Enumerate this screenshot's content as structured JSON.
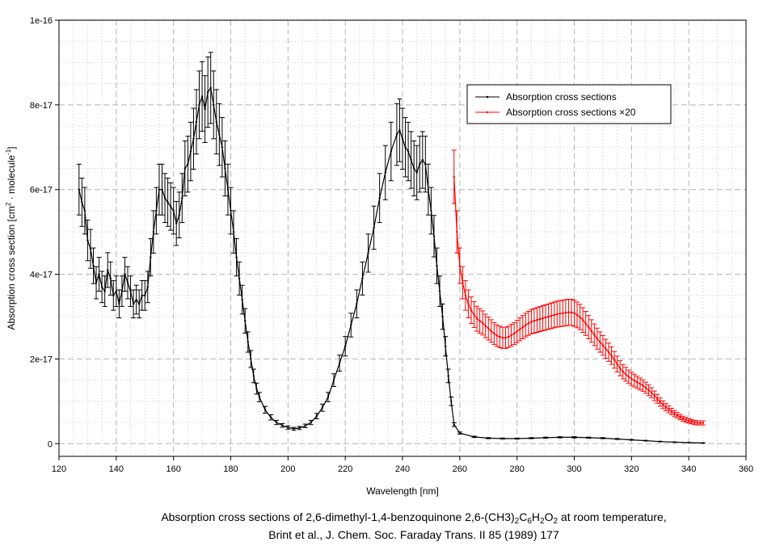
{
  "chart_data": {
    "type": "line",
    "title": "",
    "xlabel": "Wavelength [nm]",
    "ylabel": {
      "pre": "Absorption cross section [cm",
      "sup1": "2",
      "mid": " · molecule",
      "sup2": "-1",
      "post": "]"
    },
    "xlim": [
      120,
      360
    ],
    "ylim": [
      -3e-18,
      1e-16
    ],
    "x_ticks": [
      120,
      140,
      160,
      180,
      200,
      220,
      240,
      260,
      280,
      300,
      320,
      340,
      360
    ],
    "x_tick_labels": [
      "120",
      "140",
      "160",
      "180",
      "200",
      "220",
      "240",
      "260",
      "280",
      "300",
      "320",
      "340",
      "360"
    ],
    "y_ticks": [
      0,
      2e-17,
      4e-17,
      6e-17,
      8e-17,
      1e-16
    ],
    "y_tick_labels": [
      "0",
      "2e-17",
      "4e-17",
      "6e-17",
      "8e-17",
      "1e-16"
    ],
    "grid": true,
    "legend_position": "top-right",
    "series": [
      {
        "name": "Absorption cross sections",
        "color": "#000000",
        "error_fraction": 0.1,
        "x": [
          127,
          128,
          129,
          130,
          131,
          132,
          133,
          134,
          135,
          136,
          137,
          138,
          139,
          140,
          141,
          142,
          143,
          144,
          145,
          146,
          147,
          148,
          149,
          150,
          151,
          152,
          153,
          154,
          155,
          156,
          157,
          158,
          159,
          160,
          161,
          162,
          163,
          164,
          165,
          166,
          167,
          168,
          169,
          170,
          171,
          172,
          173,
          174,
          175,
          176,
          177,
          178,
          179,
          180,
          181,
          182,
          183,
          184,
          185,
          186,
          187,
          188,
          189,
          190,
          192,
          194,
          196,
          198,
          200,
          202,
          204,
          206,
          208,
          210,
          212,
          214,
          216,
          218,
          220,
          222,
          224,
          226,
          228,
          230,
          232,
          234,
          236,
          238,
          239,
          240,
          241,
          242,
          243,
          244,
          245,
          246,
          247,
          248,
          249,
          250,
          251,
          252,
          253,
          254,
          255,
          256,
          257,
          258,
          260,
          265,
          270,
          275,
          280,
          285,
          290,
          295,
          300,
          305,
          310,
          315,
          320,
          325,
          330,
          335,
          340,
          345
        ],
        "y": [
          6e-17,
          5.7e-17,
          5.5e-17,
          4.8e-17,
          4.6e-17,
          4.2e-17,
          3.8e-17,
          4e-17,
          3.7e-17,
          3.6e-17,
          4.1e-17,
          3.9e-17,
          3.5e-17,
          3.6e-17,
          3.3e-17,
          3.6e-17,
          4e-17,
          3.8e-17,
          3.6e-17,
          3.3e-17,
          3.4e-17,
          3.3e-17,
          3.5e-17,
          3.5e-17,
          3.7e-17,
          4.4e-17,
          5e-17,
          5.5e-17,
          6e-17,
          6e-17,
          5.8e-17,
          5.7e-17,
          5.6e-17,
          5.5e-17,
          5.2e-17,
          5.4e-17,
          5.8e-17,
          6.5e-17,
          6.6e-17,
          6.9e-17,
          7.2e-17,
          7.6e-17,
          8e-17,
          8.2e-17,
          7.9e-17,
          8.3e-17,
          8.4e-17,
          8e-17,
          7.6e-17,
          7.3e-17,
          7e-17,
          6.5e-17,
          6e-17,
          5.5e-17,
          5e-17,
          4.4e-17,
          3.9e-17,
          3.4e-17,
          2.9e-17,
          2.4e-17,
          2e-17,
          1.6e-17,
          1.3e-17,
          1.1e-17,
          8e-18,
          6.2e-18,
          5e-18,
          4.3e-18,
          3.8e-18,
          3.5e-18,
          3.7e-18,
          4.2e-18,
          5e-18,
          6.5e-18,
          8.5e-18,
          1.1e-17,
          1.5e-17,
          1.9e-17,
          2.3e-17,
          2.8e-17,
          3.3e-17,
          3.9e-17,
          4.5e-17,
          5.1e-17,
          5.8e-17,
          6.4e-17,
          6.9e-17,
          7.3e-17,
          7.4e-17,
          7.2e-17,
          7e-17,
          6.9e-17,
          6.7e-17,
          6.5e-17,
          6.4e-17,
          6.6e-17,
          6.7e-17,
          6.6e-17,
          6e-17,
          5.5e-17,
          4.9e-17,
          4.2e-17,
          3.6e-17,
          3e-17,
          2.3e-17,
          1.6e-17,
          1e-17,
          4.5e-18,
          2.5e-18,
          1.6e-18,
          1.3e-18,
          1.2e-18,
          1.2e-18,
          1.3e-18,
          1.4e-18,
          1.5e-18,
          1.5e-18,
          1.4e-18,
          1.3e-18,
          1.1e-18,
          9e-19,
          7e-19,
          5e-19,
          3.5e-19,
          2.5e-19,
          1.5e-19
        ]
      },
      {
        "name": "Absorption cross sections ×20",
        "color": "#ff0000",
        "error_fraction": 0.1,
        "x": [
          258,
          259,
          260,
          261,
          262,
          263,
          264,
          265,
          266,
          267,
          268,
          269,
          270,
          271,
          272,
          273,
          274,
          275,
          276,
          277,
          278,
          279,
          280,
          281,
          282,
          283,
          284,
          285,
          286,
          287,
          288,
          289,
          290,
          291,
          292,
          293,
          294,
          295,
          296,
          297,
          298,
          299,
          300,
          301,
          302,
          303,
          304,
          305,
          306,
          307,
          308,
          309,
          310,
          311,
          312,
          313,
          314,
          315,
          316,
          317,
          318,
          319,
          320,
          321,
          322,
          323,
          324,
          325,
          326,
          327,
          328,
          329,
          330,
          331,
          332,
          333,
          334,
          335,
          336,
          337,
          338,
          339,
          340,
          341,
          342,
          343,
          344,
          345
        ],
        "y": [
          6.3e-17,
          5e-17,
          4.2e-17,
          3.8e-17,
          3.5e-17,
          3.3e-17,
          3.15e-17,
          3.05e-17,
          2.95e-17,
          2.9e-17,
          2.85e-17,
          2.78e-17,
          2.72e-17,
          2.66e-17,
          2.6e-17,
          2.55e-17,
          2.52e-17,
          2.5e-17,
          2.5e-17,
          2.52e-17,
          2.56e-17,
          2.6e-17,
          2.65e-17,
          2.7e-17,
          2.75e-17,
          2.8e-17,
          2.84e-17,
          2.88e-17,
          2.9e-17,
          2.92e-17,
          2.94e-17,
          2.96e-17,
          2.98e-17,
          3e-17,
          3.02e-17,
          3.04e-17,
          3.06e-17,
          3.07e-17,
          3.08e-17,
          3.09e-17,
          3.1e-17,
          3.1e-17,
          3.08e-17,
          3.04e-17,
          2.99e-17,
          2.92e-17,
          2.84e-17,
          2.75e-17,
          2.66e-17,
          2.57e-17,
          2.48e-17,
          2.4e-17,
          2.32e-17,
          2.24e-17,
          2.16e-17,
          2.08e-17,
          1.98e-17,
          1.88e-17,
          1.78e-17,
          1.7e-17,
          1.64e-17,
          1.58e-17,
          1.53e-17,
          1.49e-17,
          1.45e-17,
          1.41e-17,
          1.37e-17,
          1.32e-17,
          1.26e-17,
          1.2e-17,
          1.13e-17,
          1.06e-17,
          9.8e-18,
          9.2e-18,
          8.6e-18,
          8.1e-18,
          7.6e-18,
          7.1e-18,
          6.7e-18,
          6.3e-18,
          5.9e-18,
          5.6e-18,
          5.4e-18,
          5.2e-18,
          5e-18,
          4.9e-18,
          4.9e-18,
          4.9e-18
        ]
      }
    ]
  },
  "caption": {
    "line1": {
      "a": "Absorption cross sections of 2,6-dimethyl-1,4-benzoquinone 2,6-(CH3)",
      "s1": "2",
      "b": "C",
      "s2": "6",
      "c": "H",
      "s3": "2",
      "d": "O",
      "s4": "2",
      "e": " at room temperature,"
    },
    "line2": "Brint et al., J. Chem. Soc. Faraday Trans. II 85 (1989) 177"
  }
}
